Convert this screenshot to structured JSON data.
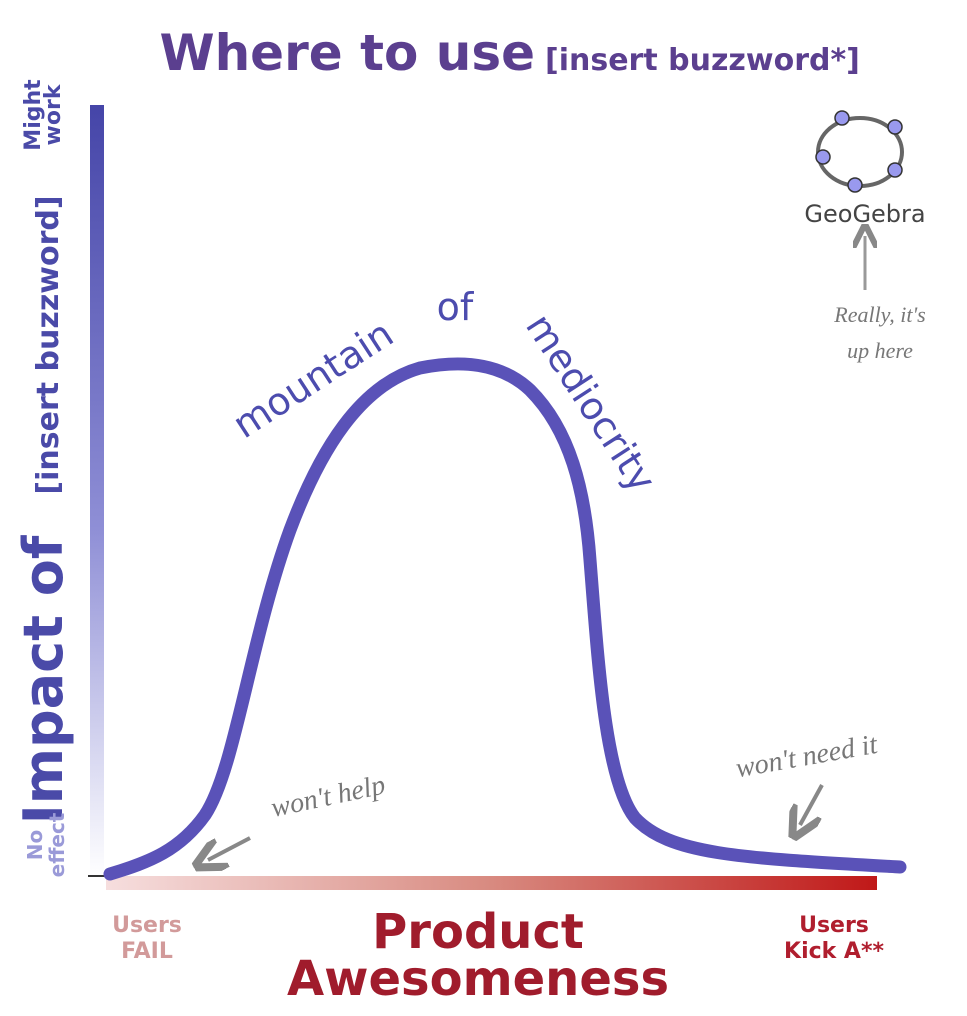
{
  "title": {
    "lead": "Where to use",
    "buzzword": "[insert buzzword*]"
  },
  "y_axis": {
    "label": "Impact of",
    "buzzword": "[insert buzzword]",
    "top": [
      "Might",
      "work"
    ],
    "bottom": [
      "No",
      "effect"
    ]
  },
  "x_axis": {
    "label": [
      "Product",
      "Awesomeness"
    ],
    "left": [
      "Users",
      "FAIL"
    ],
    "right": [
      "Users",
      "Kick A**"
    ]
  },
  "curve_label": {
    "left": "mountain",
    "middle": "of",
    "right": "mediocrity"
  },
  "annotations": {
    "left": "won't help",
    "right": "won't need it",
    "logo": "GeoGebra",
    "note": [
      "Really, it's",
      "up here"
    ]
  }
}
